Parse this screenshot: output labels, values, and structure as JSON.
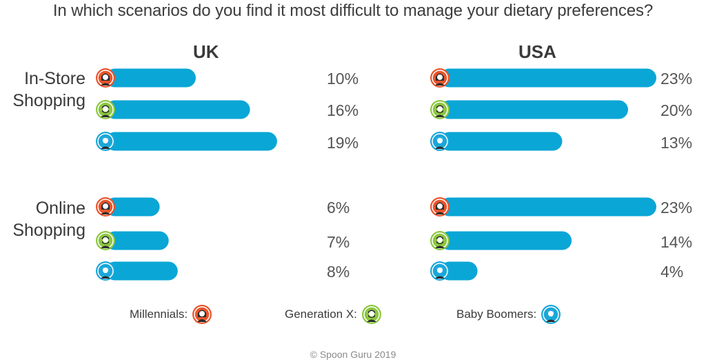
{
  "colors": {
    "bar": "#0aa6d6",
    "millennials": "#e8552c",
    "generation_x": "#8cc63f",
    "baby_boomers": "#1aa7d9",
    "text": "#3a3a3a"
  },
  "chart_data": {
    "type": "bar",
    "orientation": "horizontal",
    "title": "In which scenarios do you find it most difficult to manage your dietary preferences?",
    "panels": [
      "UK",
      "USA"
    ],
    "groups": [
      "In-Store Shopping",
      "Online Shopping"
    ],
    "group_labels": [
      [
        "In-Store",
        "Shopping"
      ],
      [
        "Online",
        "Shopping"
      ]
    ],
    "series": [
      {
        "name": "Millennials",
        "icon": "millennial-icon",
        "color_key": "millennials"
      },
      {
        "name": "Generation X",
        "icon": "generation-x-icon",
        "color_key": "generation_x"
      },
      {
        "name": "Baby Boomers",
        "icon": "baby-boomer-icon",
        "color_key": "baby_boomers"
      }
    ],
    "values": {
      "UK": {
        "In-Store Shopping": [
          10,
          16,
          19
        ],
        "Online Shopping": [
          6,
          7,
          8
        ]
      },
      "USA": {
        "In-Store Shopping": [
          23,
          20,
          13
        ],
        "Online Shopping": [
          23,
          14,
          4
        ]
      }
    },
    "value_labels": {
      "UK": {
        "In-Store Shopping": [
          "10%",
          "16%",
          "19%"
        ],
        "Online Shopping": [
          "6%",
          "7%",
          "8%"
        ]
      },
      "USA": {
        "In-Store Shopping": [
          "23%",
          "20%",
          "13%"
        ],
        "Online Shopping": [
          "23%",
          "14%",
          "4%"
        ]
      }
    },
    "xlim": [
      0,
      23
    ],
    "grid": false
  },
  "legend": {
    "millennials": "Millennials:",
    "generation_x": "Generation X:",
    "baby_boomers": "Baby Boomers:"
  },
  "footer": "© Spoon Guru 2019"
}
